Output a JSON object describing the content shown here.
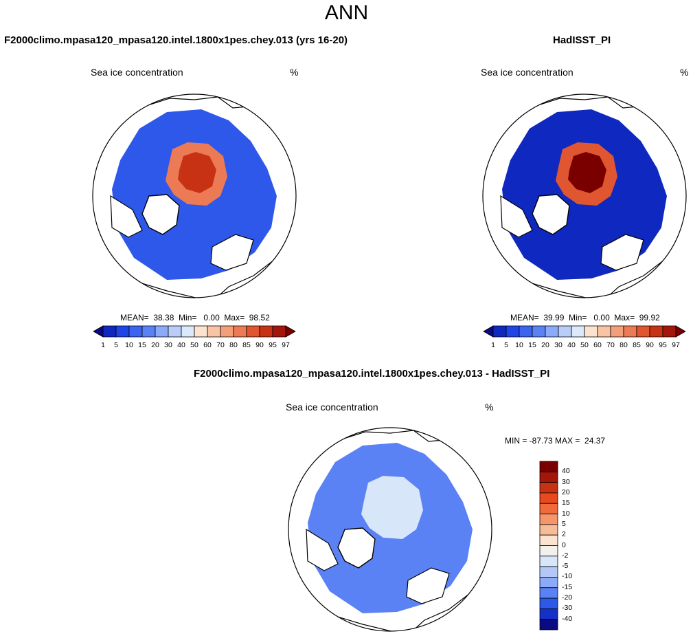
{
  "page": {
    "title": "ANN"
  },
  "panels": [
    {
      "title": "F2000climo.mpasa120_mpasa120.intel.1800x1pes.chey.013 (yrs 16-20)",
      "variable": "Sea ice concentration",
      "units": "%",
      "stats": "MEAN=  38.38  Min=   0.00  Max=  98.52"
    },
    {
      "title": "HadISST_PI",
      "variable": "Sea ice concentration",
      "units": "%",
      "stats": "MEAN=  39.99  Min=   0.00  Max=  99.92"
    },
    {
      "title": "F2000climo.mpasa120_mpasa120.intel.1800x1pes.chey.013 - HadISST_PI",
      "variable": "Sea ice concentration",
      "units": "%",
      "stats": "MIN = -87.73 MAX =  24.37"
    }
  ],
  "chart_data": [
    {
      "type": "heatmap",
      "title": "F2000climo.mpasa120_mpasa120.intel.1800x1pes.chey.013 (yrs 16-20)",
      "projection": "north polar stereographic",
      "variable": "Sea ice concentration",
      "units": "%",
      "mean": 38.38,
      "min": 0.0,
      "max": 98.52,
      "colorbar": {
        "levels": [
          "1",
          "5",
          "10",
          "15",
          "20",
          "30",
          "40",
          "50",
          "60",
          "70",
          "80",
          "85",
          "90",
          "95",
          "97"
        ],
        "colors": [
          "#0a0a82",
          "#0f28c0",
          "#1e46e6",
          "#3c64f0",
          "#5a82f5",
          "#8caaf8",
          "#b9cdf8",
          "#dce9fa",
          "#fbe3cf",
          "#f8c4a5",
          "#f3a07a",
          "#ec7b55",
          "#e05630",
          "#c83214",
          "#a4160a",
          "#7a0000"
        ]
      }
    },
    {
      "type": "heatmap",
      "title": "HadISST_PI",
      "projection": "north polar stereographic",
      "variable": "Sea ice concentration",
      "units": "%",
      "mean": 39.99,
      "min": 0.0,
      "max": 99.92,
      "colorbar": {
        "levels": [
          "1",
          "5",
          "10",
          "15",
          "20",
          "30",
          "40",
          "50",
          "60",
          "70",
          "80",
          "85",
          "90",
          "95",
          "97"
        ],
        "colors": [
          "#0a0a82",
          "#0f28c0",
          "#1e46e6",
          "#3c64f0",
          "#5a82f5",
          "#8caaf8",
          "#b9cdf8",
          "#dce9fa",
          "#fbe3cf",
          "#f8c4a5",
          "#f3a07a",
          "#ec7b55",
          "#e05630",
          "#c83214",
          "#a4160a",
          "#7a0000"
        ]
      }
    },
    {
      "type": "heatmap",
      "title": "F2000climo.mpasa120_mpasa120.intel.1800x1pes.chey.013 - HadISST_PI",
      "projection": "north polar stereographic",
      "variable": "Sea ice concentration",
      "units": "%",
      "min": -87.73,
      "max": 24.37,
      "colorbar": {
        "levels": [
          "40",
          "30",
          "20",
          "15",
          "10",
          "5",
          "2",
          "0",
          "-2",
          "-5",
          "-10",
          "-15",
          "-20",
          "-30",
          "-40"
        ],
        "colors": [
          "#7a0000",
          "#a4160a",
          "#c83214",
          "#e84a1e",
          "#f06a3c",
          "#f4956a",
          "#f8bb98",
          "#fbe3cf",
          "#f4f0ec",
          "#d8e6fa",
          "#b4c8f8",
          "#8caaf8",
          "#5a82f5",
          "#2e58ea",
          "#1530c8",
          "#0a0a82"
        ]
      }
    }
  ]
}
